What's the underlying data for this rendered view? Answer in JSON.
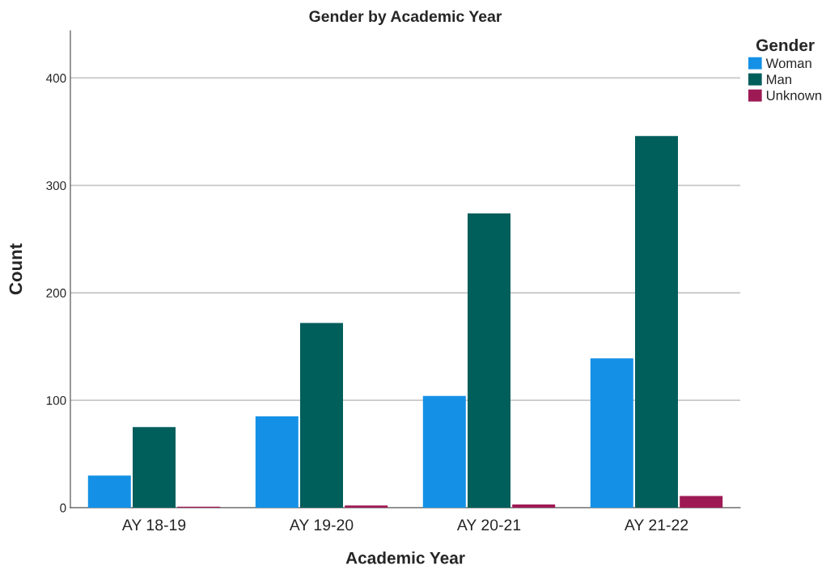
{
  "chart_data": {
    "type": "bar",
    "title": "Gender by Academic Year",
    "xlabel": "Academic Year",
    "ylabel": "Count",
    "legend_title": "Gender",
    "categories": [
      "AY 18-19",
      "AY 19-20",
      "AY 20-21",
      "AY 21-22"
    ],
    "series": [
      {
        "name": "Woman",
        "color": "#1491e6",
        "values": [
          30,
          85,
          104,
          139
        ]
      },
      {
        "name": "Man",
        "color": "#005e5b",
        "values": [
          75,
          172,
          274,
          346
        ]
      },
      {
        "name": "Unknown",
        "color": "#9e1a55",
        "values": [
          1,
          2,
          3,
          11
        ]
      }
    ],
    "ylim": [
      0,
      444
    ],
    "yticks": [
      0,
      100,
      200,
      300,
      400
    ],
    "grid": "y",
    "legend": "top right"
  }
}
